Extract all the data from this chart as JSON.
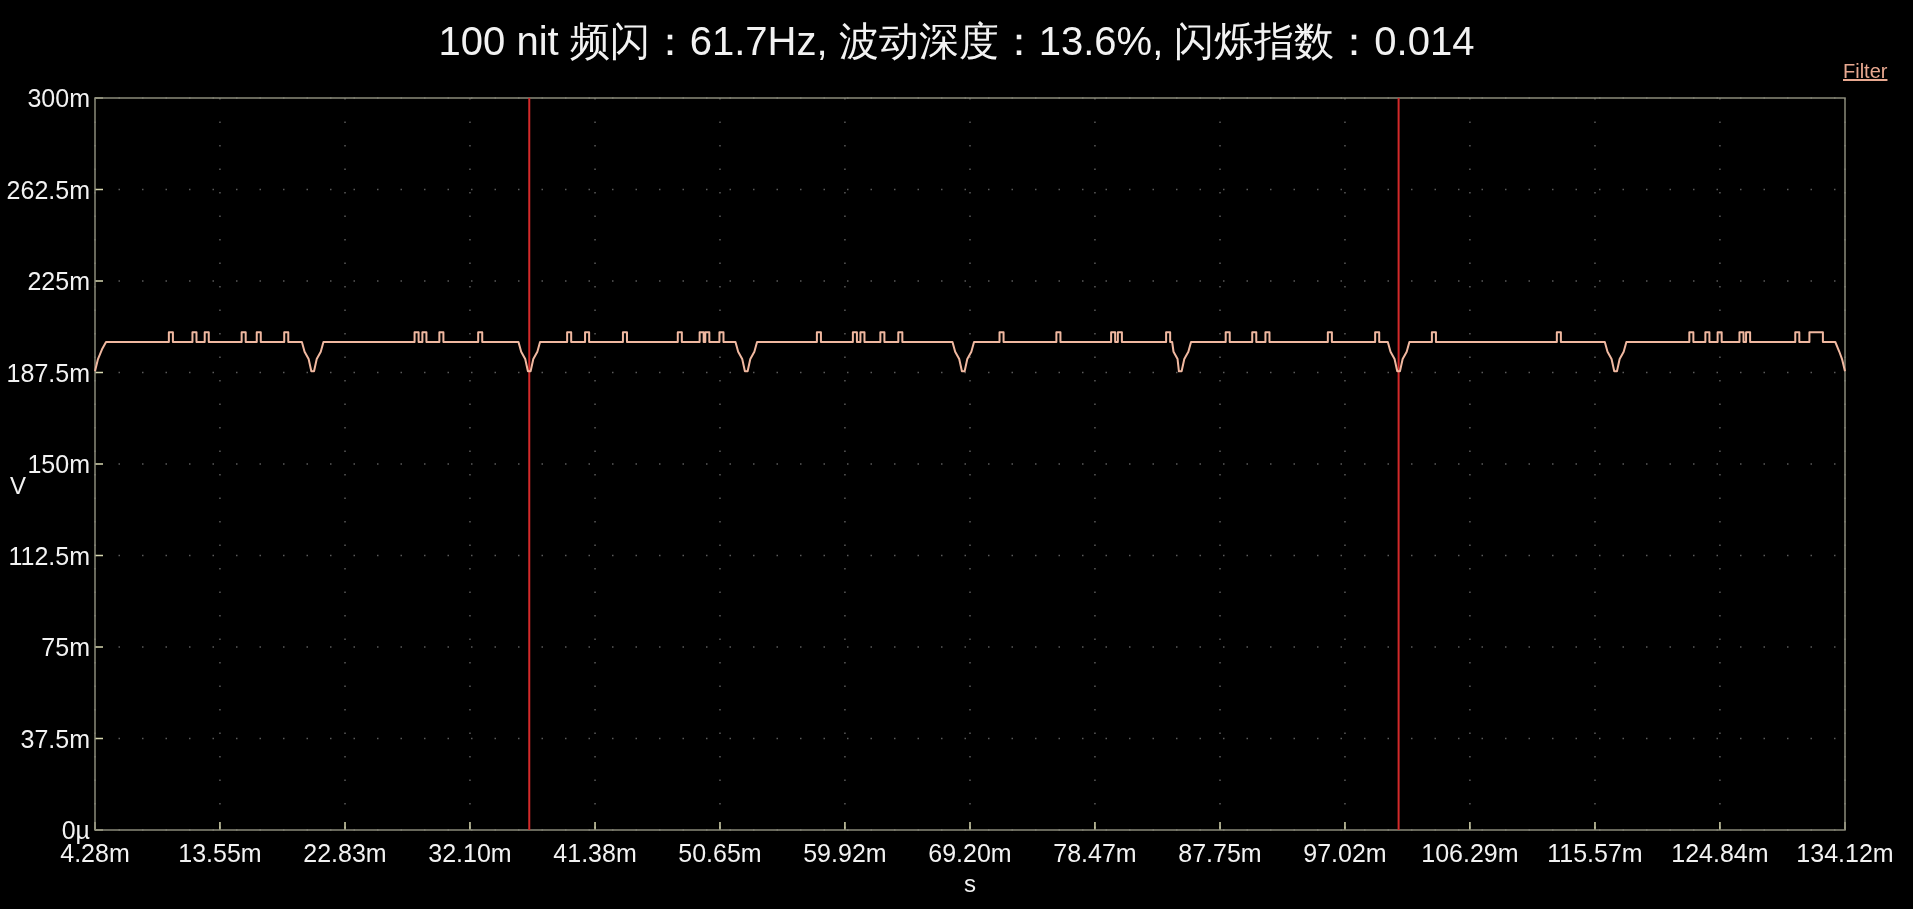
{
  "chart_data": {
    "type": "line",
    "title": "100 nit 频闪：61.7Hz, 波动深度：13.6%, 闪烁指数：0.014",
    "xlabel": "s",
    "ylabel": "V",
    "annotations": [
      "Filter"
    ],
    "xlim": [
      4.28,
      134.12
    ],
    "ylim": [
      0,
      300
    ],
    "xticks": [
      {
        "value": 4.28,
        "label": "4.28m"
      },
      {
        "value": 13.55,
        "label": "13.55m"
      },
      {
        "value": 22.83,
        "label": "22.83m"
      },
      {
        "value": 32.1,
        "label": "32.10m"
      },
      {
        "value": 41.38,
        "label": "41.38m"
      },
      {
        "value": 50.65,
        "label": "50.65m"
      },
      {
        "value": 59.92,
        "label": "59.92m"
      },
      {
        "value": 69.2,
        "label": "69.20m"
      },
      {
        "value": 78.47,
        "label": "78.47m"
      },
      {
        "value": 87.75,
        "label": "87.75m"
      },
      {
        "value": 97.02,
        "label": "97.02m"
      },
      {
        "value": 106.29,
        "label": "106.29m"
      },
      {
        "value": 115.57,
        "label": "115.57m"
      },
      {
        "value": 124.84,
        "label": "124.84m"
      },
      {
        "value": 134.12,
        "label": "134.12m"
      }
    ],
    "yticks": [
      {
        "value": 0,
        "label": "0µ"
      },
      {
        "value": 37.5,
        "label": "37.5m"
      },
      {
        "value": 75,
        "label": "75m"
      },
      {
        "value": 112.5,
        "label": "112.5m"
      },
      {
        "value": 150,
        "label": "150m"
      },
      {
        "value": 187.5,
        "label": "187.5m"
      },
      {
        "value": 225,
        "label": "225m"
      },
      {
        "value": 262.5,
        "label": "262.5m"
      },
      {
        "value": 300,
        "label": "300m"
      }
    ],
    "grid": true,
    "marker": "none",
    "line_style": "solid",
    "ref_lines": [
      {
        "axis": "x",
        "value": 36.5,
        "color": "#d42a2a"
      },
      {
        "axis": "x",
        "value": 101.0,
        "color": "#d42a2a"
      }
    ],
    "series": [
      {
        "color": "#f0b8a0",
        "x": [
          4.28,
          4.5,
          4.8,
          5.1,
          9.76,
          9.76,
          10.06,
          10.06,
          11.51,
          11.51,
          11.81,
          11.81,
          12.42,
          12.42,
          12.72,
          12.72,
          15.16,
          15.16,
          15.46,
          15.46,
          16.28,
          16.28,
          16.58,
          16.58,
          18.32,
          18.32,
          18.62,
          18.62,
          19.63,
          19.83,
          20.13,
          20.33,
          20.53,
          20.73,
          21.03,
          21.23,
          27.99,
          27.99,
          28.29,
          28.29,
          28.57,
          28.57,
          28.87,
          28.87,
          29.83,
          29.83,
          30.13,
          30.13,
          32.71,
          32.71,
          33.01,
          33.01,
          35.7,
          35.9,
          36.2,
          36.4,
          36.6,
          36.8,
          37.1,
          37.3,
          39.31,
          39.31,
          39.61,
          39.61,
          40.64,
          40.64,
          40.94,
          40.94,
          43.45,
          43.45,
          43.75,
          43.75,
          47.52,
          47.52,
          47.82,
          47.82,
          49.14,
          49.14,
          49.44,
          49.44,
          49.56,
          49.56,
          49.86,
          49.86,
          50.61,
          50.61,
          50.91,
          50.91,
          51.8,
          52.0,
          52.3,
          52.5,
          52.7,
          52.9,
          53.2,
          53.4,
          57.84,
          57.84,
          58.14,
          58.14,
          60.51,
          60.51,
          60.81,
          60.81,
          61.07,
          61.07,
          61.37,
          61.37,
          62.55,
          62.55,
          62.85,
          62.85,
          63.88,
          63.88,
          64.18,
          64.18,
          67.9,
          68.1,
          68.4,
          68.6,
          68.8,
          69.0,
          69.3,
          69.5,
          71.39,
          71.39,
          71.69,
          71.69,
          75.61,
          75.61,
          75.91,
          75.91,
          79.67,
          79.67,
          79.97,
          79.97,
          80.17,
          80.17,
          80.47,
          80.47,
          83.75,
          83.75,
          84.05,
          84.05,
          84.2,
          84.3,
          84.6,
          84.7,
          84.9,
          85.1,
          85.4,
          85.6,
          88.17,
          88.17,
          88.47,
          88.47,
          90.14,
          90.14,
          90.44,
          90.44,
          91.12,
          91.12,
          91.42,
          91.42,
          95.75,
          95.75,
          96.05,
          96.05,
          99.26,
          99.26,
          99.56,
          99.56,
          100.2,
          100.4,
          100.7,
          100.9,
          101.1,
          101.3,
          101.6,
          101.8,
          103.47,
          103.47,
          103.77,
          103.77,
          112.74,
          112.74,
          113.04,
          113.04,
          116.3,
          116.5,
          116.8,
          117.0,
          117.2,
          117.4,
          117.7,
          117.9,
          122.57,
          122.57,
          122.87,
          122.87,
          123.76,
          123.76,
          124.06,
          124.06,
          124.67,
          124.67,
          124.97,
          124.97,
          126.29,
          126.29,
          126.59,
          126.59,
          126.78,
          126.78,
          127.08,
          127.08,
          130.43,
          130.43,
          130.73,
          130.73,
          131.48,
          131.48,
          132.48,
          132.48,
          133.4,
          133.7,
          133.9,
          134.12
        ],
        "values": [
          188,
          193,
          197,
          200,
          200,
          204,
          204,
          200,
          200,
          204,
          204,
          200,
          200,
          204,
          204,
          200,
          200,
          204,
          204,
          200,
          200,
          204,
          204,
          200,
          200,
          204,
          204,
          200,
          200,
          196,
          193,
          188,
          188,
          193,
          196,
          200,
          200,
          204,
          204,
          200,
          200,
          204,
          204,
          200,
          200,
          204,
          204,
          200,
          200,
          204,
          204,
          200,
          200,
          196,
          193,
          188,
          188,
          193,
          196,
          200,
          200,
          204,
          204,
          200,
          200,
          204,
          204,
          200,
          200,
          204,
          204,
          200,
          200,
          204,
          204,
          200,
          200,
          204,
          204,
          200,
          200,
          204,
          204,
          200,
          200,
          204,
          204,
          200,
          200,
          196,
          193,
          188,
          188,
          193,
          196,
          200,
          200,
          204,
          204,
          200,
          200,
          204,
          204,
          200,
          200,
          204,
          204,
          200,
          200,
          204,
          204,
          200,
          200,
          204,
          204,
          200,
          200,
          196,
          193,
          188,
          188,
          193,
          196,
          200,
          200,
          204,
          204,
          200,
          200,
          204,
          204,
          200,
          200,
          204,
          204,
          200,
          200,
          204,
          204,
          200,
          200,
          204,
          204,
          200,
          200,
          196,
          193,
          188,
          188,
          193,
          196,
          200,
          200,
          204,
          204,
          200,
          200,
          204,
          204,
          200,
          200,
          204,
          204,
          200,
          200,
          204,
          204,
          200,
          200,
          204,
          204,
          200,
          200,
          196,
          193,
          188,
          188,
          193,
          196,
          200,
          200,
          204,
          204,
          200,
          200,
          204,
          204,
          200,
          200,
          196,
          193,
          188,
          188,
          193,
          196,
          200,
          200,
          204,
          204,
          200,
          200,
          204,
          204,
          200,
          200,
          204,
          204,
          200,
          200,
          204,
          204,
          200,
          200,
          204,
          204,
          200,
          200,
          204,
          204,
          200,
          200,
          204,
          204,
          200,
          200,
          196,
          193,
          188
        ]
      }
    ]
  }
}
